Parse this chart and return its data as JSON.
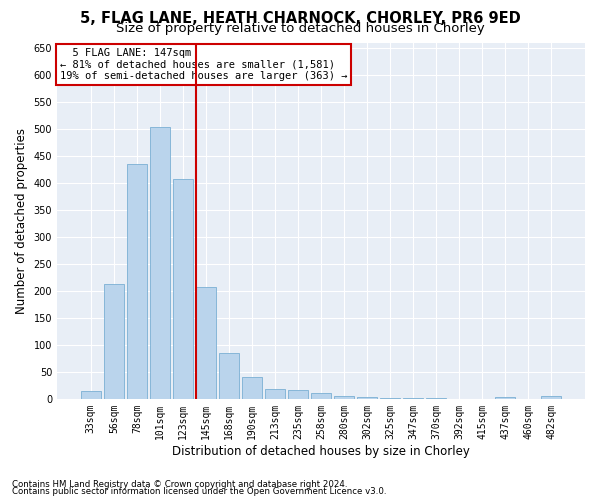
{
  "title1": "5, FLAG LANE, HEATH CHARNOCK, CHORLEY, PR6 9ED",
  "title2": "Size of property relative to detached houses in Chorley",
  "xlabel": "Distribution of detached houses by size in Chorley",
  "ylabel": "Number of detached properties",
  "categories": [
    "33sqm",
    "56sqm",
    "78sqm",
    "101sqm",
    "123sqm",
    "145sqm",
    "168sqm",
    "190sqm",
    "213sqm",
    "235sqm",
    "258sqm",
    "280sqm",
    "302sqm",
    "325sqm",
    "347sqm",
    "370sqm",
    "392sqm",
    "415sqm",
    "437sqm",
    "460sqm",
    "482sqm"
  ],
  "values": [
    15,
    212,
    435,
    503,
    407,
    207,
    85,
    40,
    18,
    17,
    11,
    6,
    4,
    2,
    1,
    1,
    0,
    0,
    4,
    0,
    5
  ],
  "bar_color": "#bad4ec",
  "bar_edge_color": "#7aafd4",
  "vline_index": 5,
  "vline_color": "#cc0000",
  "annotation_line1": "  5 FLAG LANE: 147sqm",
  "annotation_line2": "← 81% of detached houses are smaller (1,581)",
  "annotation_line3": "19% of semi-detached houses are larger (363) →",
  "annotation_box_color": "#ffffff",
  "annotation_box_edge": "#cc0000",
  "ylim": [
    0,
    660
  ],
  "yticks": [
    0,
    50,
    100,
    150,
    200,
    250,
    300,
    350,
    400,
    450,
    500,
    550,
    600,
    650
  ],
  "bg_color": "#e8eef6",
  "footer1": "Contains HM Land Registry data © Crown copyright and database right 2024.",
  "footer2": "Contains public sector information licensed under the Open Government Licence v3.0.",
  "title1_fontsize": 10.5,
  "title2_fontsize": 9.5,
  "tick_fontsize": 7,
  "xlabel_fontsize": 8.5,
  "ylabel_fontsize": 8.5,
  "footer_fontsize": 6.2,
  "annotation_fontsize": 7.5
}
